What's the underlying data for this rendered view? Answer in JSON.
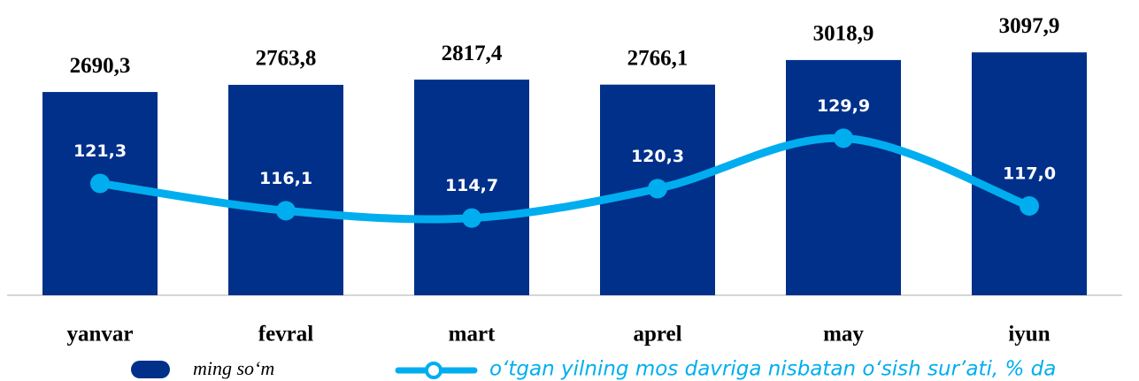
{
  "chart_data": {
    "type": "bar_line",
    "categories": [
      "yanvar",
      "fevral",
      "mart",
      "aprel",
      "may",
      "iyun"
    ],
    "series": [
      {
        "name": "ming so‘m",
        "type": "bar",
        "color": "#00308a",
        "values": [
          2690.3,
          2763.8,
          2817.4,
          2766.1,
          3018.9,
          3097.9
        ],
        "value_labels": [
          "2690,3",
          "2763,8",
          "2817,4",
          "2766,1",
          "3018,9",
          "3097,9"
        ]
      },
      {
        "name": "o‘tgan yilning mos davriga nisbatan o‘sish sur’ati, % da",
        "type": "line",
        "axis": "y2",
        "color": "#00aeef",
        "values": [
          121.3,
          116.1,
          114.7,
          120.3,
          129.9,
          117.0
        ],
        "value_labels": [
          "121,3",
          "116,1",
          "114,7",
          "120,3",
          "129,9",
          "117,0"
        ]
      }
    ],
    "ylim": [
      600,
      3300
    ],
    "y2lim": [
      100,
      150
    ]
  }
}
